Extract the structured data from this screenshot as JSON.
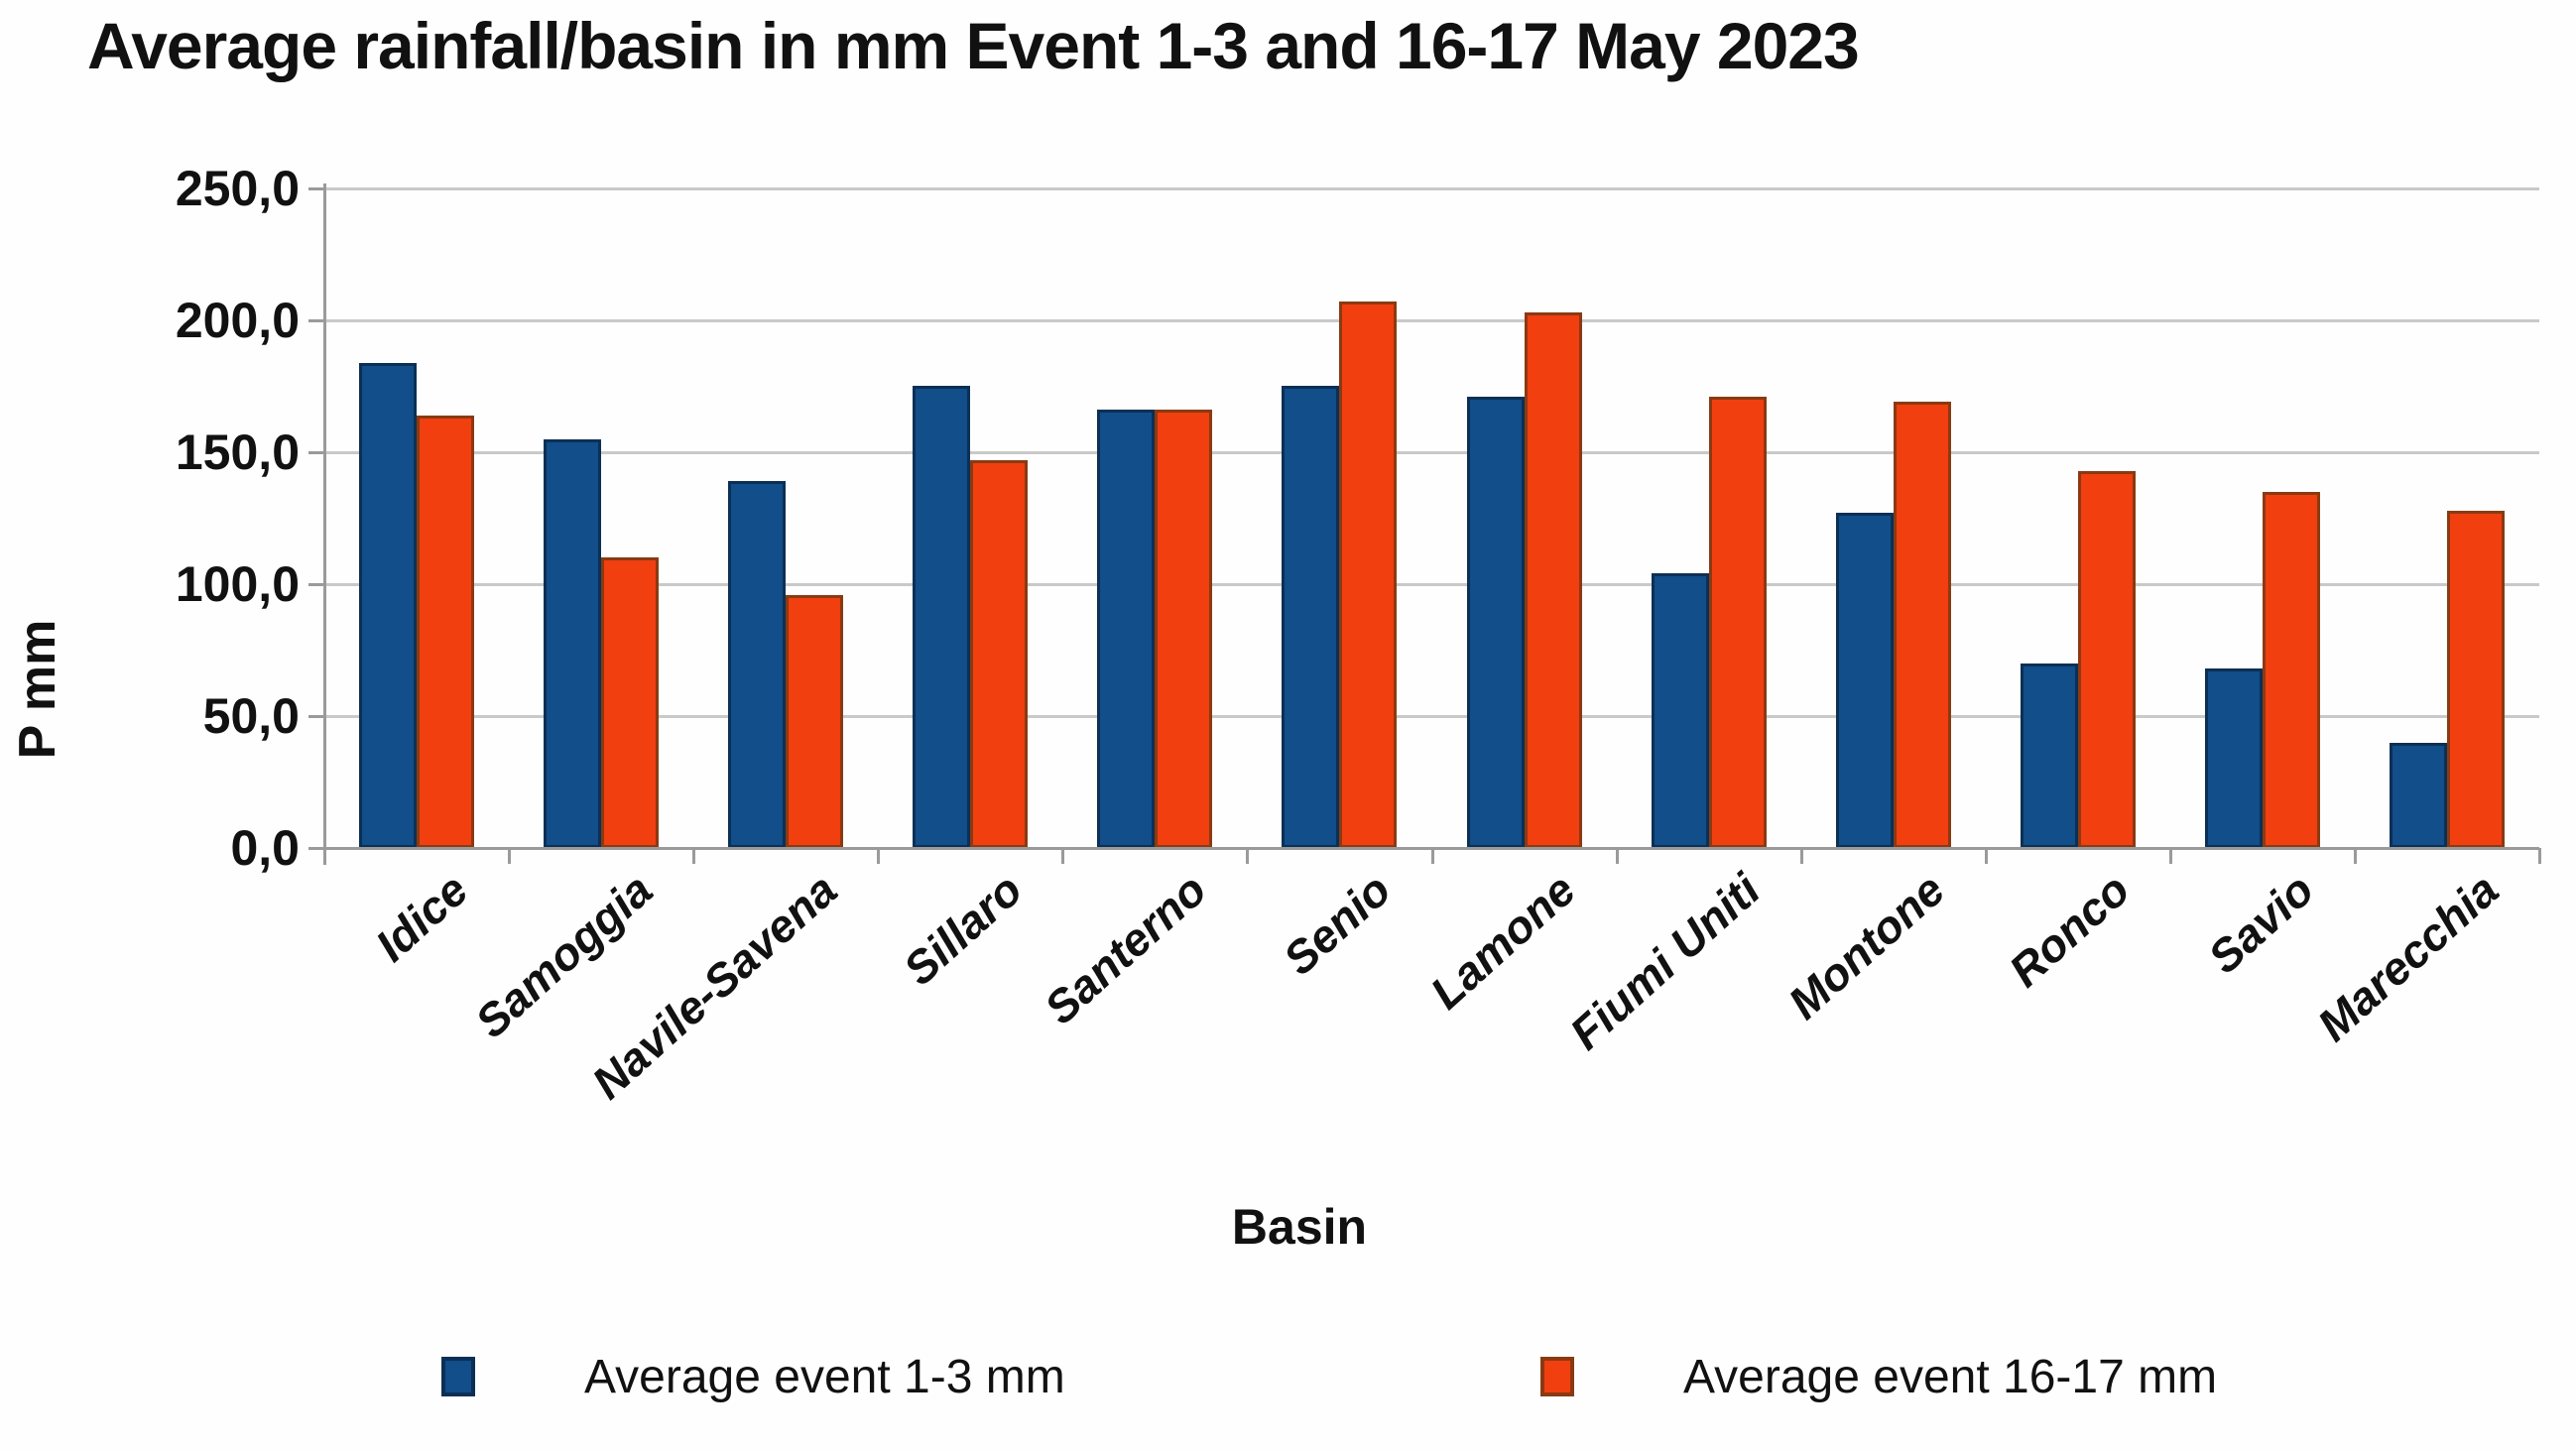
{
  "title": "Average rainfall/basin in mm Event 1-3 and 16-17 May 2023",
  "chart_data": {
    "type": "bar",
    "title": "Average rainfall/basin in mm Event 1-3 and 16-17 May 2023",
    "xlabel": "Basin",
    "ylabel": "P mm",
    "ylim": [
      0,
      250
    ],
    "ytick_step": 50,
    "ytick_labels": [
      "0,0",
      "50,0",
      "100,0",
      "150,0",
      "200,0",
      "250,0"
    ],
    "grid": true,
    "legend_position": "bottom",
    "categories": [
      "Idice",
      "Samoggia",
      "Navile-Savena",
      "Sillaro",
      "Santerno",
      "Senio",
      "Lamone",
      "Fiumi Uniti",
      "Montone",
      "Ronco",
      "Savio",
      "Marecchia"
    ],
    "series": [
      {
        "name": "Average event 1-3 mm",
        "color": "#114e8a",
        "border_color": "#0b3055",
        "values": [
          184,
          155,
          139,
          175,
          166,
          175,
          171,
          104,
          127,
          70,
          68,
          40
        ]
      },
      {
        "name": "Average event 16-17 mm",
        "color": "#f13f10",
        "border_color": "#8a3a12",
        "values": [
          164,
          110,
          96,
          147,
          166,
          207,
          203,
          171,
          169,
          143,
          135,
          128
        ]
      }
    ]
  },
  "colors": {
    "gridline": "#c9c9c9",
    "axis": "#9a9a9a",
    "text": "#111111",
    "background": "#fefefe"
  }
}
